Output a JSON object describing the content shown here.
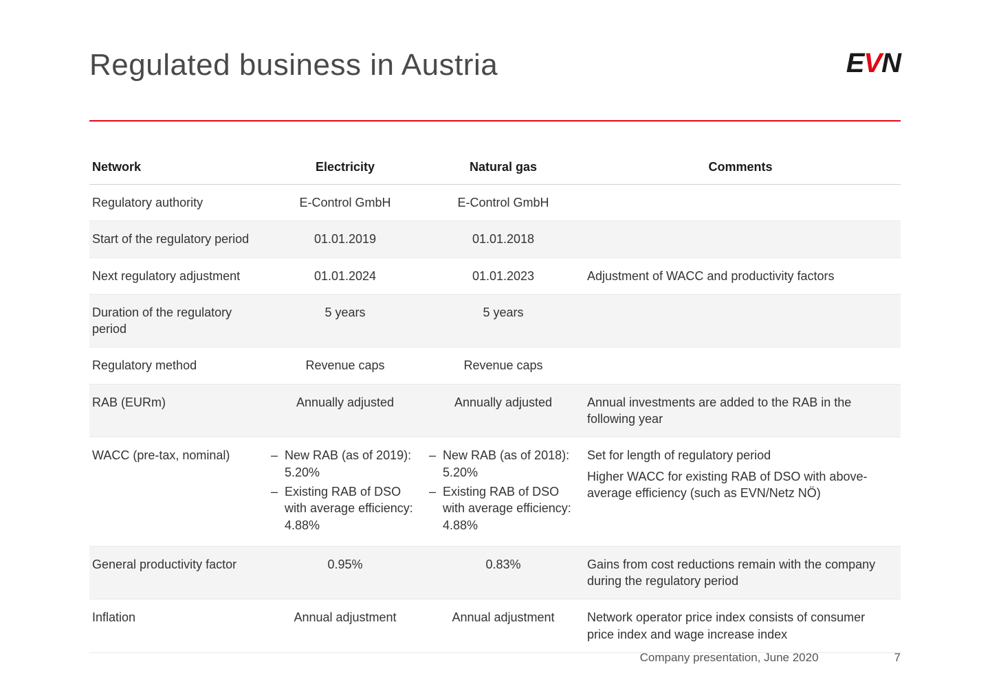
{
  "title": "Regulated business in Austria",
  "logo": {
    "e": "E",
    "v": "V",
    "n": "N"
  },
  "colors": {
    "accent": "#e30613",
    "text": "#333333",
    "rule": "#d0d0d0"
  },
  "table": {
    "headers": {
      "network": "Network",
      "electricity": "Electricity",
      "gas": "Natural gas",
      "comments": "Comments"
    },
    "rows": [
      {
        "label": "Regulatory authority",
        "elec": "E-Control GmbH",
        "gas": "E-Control GmbH",
        "comment": ""
      },
      {
        "label": "Start of the regulatory period",
        "elec": "01.01.2019",
        "gas": "01.01.2018",
        "comment": ""
      },
      {
        "label": "Next regulatory adjustment",
        "elec": "01.01.2024",
        "gas": "01.01.2023",
        "comment": "Adjustment of WACC and productivity factors"
      },
      {
        "label": "Duration of the regulatory period",
        "elec": "5 years",
        "gas": "5 years",
        "comment": ""
      },
      {
        "label": "Regulatory method",
        "elec": "Revenue caps",
        "gas": "Revenue caps",
        "comment": ""
      },
      {
        "label": "RAB (EURm)",
        "elec": "Annually adjusted",
        "gas": "Annually adjusted",
        "comment": "Annual investments are added to the RAB in the following year"
      },
      {
        "label": "WACC (pre-tax, nominal)",
        "elec_list": [
          "New RAB (as of 2019): 5.20%",
          "Existing RAB of DSO with average efficiency: 4.88%"
        ],
        "gas_list": [
          "New RAB (as of 2018): 5.20%",
          "Existing RAB of DSO with average efficiency: 4.88%"
        ],
        "comment_list": [
          "Set for length of regulatory period",
          "Higher WACC for existing RAB of DSO with above-average efficiency (such as EVN/Netz NÖ)"
        ]
      },
      {
        "label": "General productivity factor",
        "elec": "0.95%",
        "gas": "0.83%",
        "comment": "Gains from cost reductions remain with the company during the regulatory period"
      },
      {
        "label": "Inflation",
        "elec": "Annual adjustment",
        "gas": "Annual adjustment",
        "comment": "Network operator price index consists of consumer price index and wage increase index"
      }
    ]
  },
  "footer": {
    "text": "Company presentation, June 2020",
    "page": "7"
  }
}
